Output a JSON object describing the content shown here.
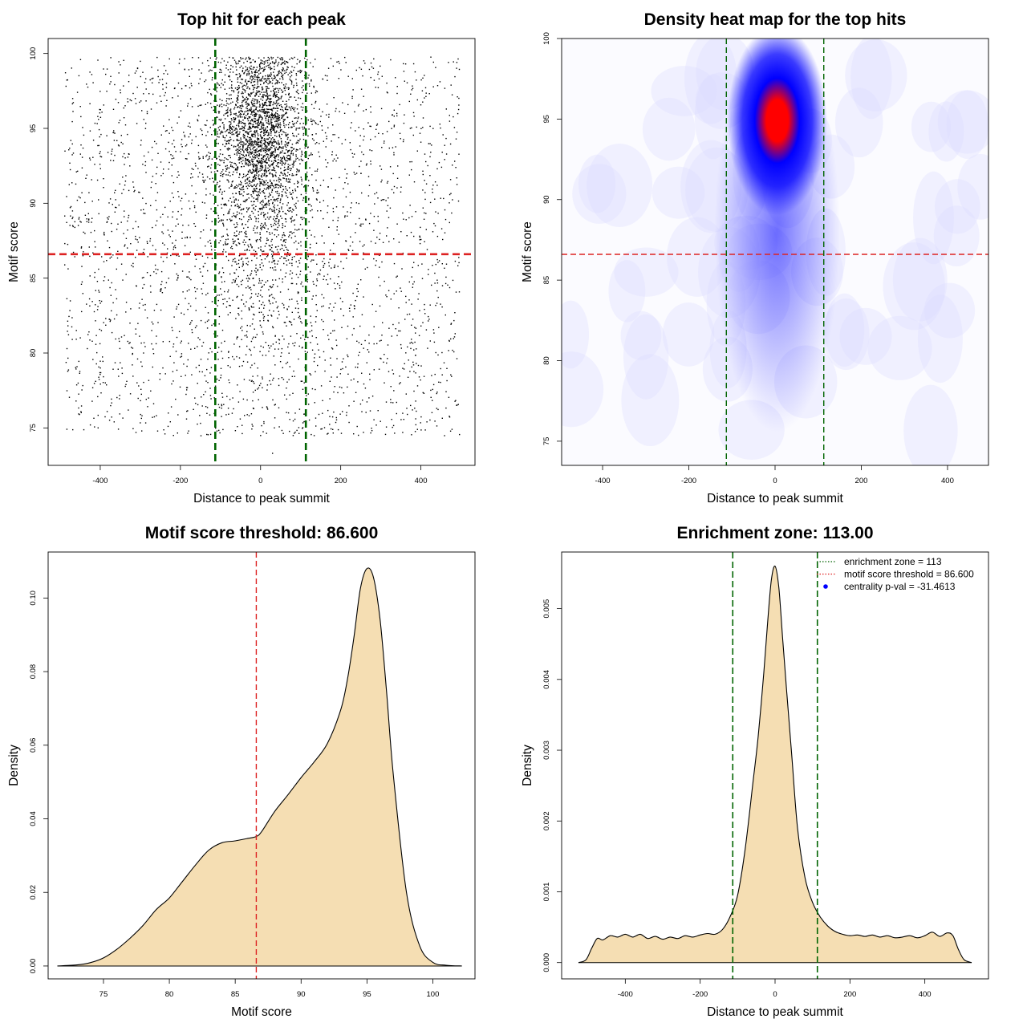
{
  "chart_data": [
    {
      "id": "p1",
      "type": "scatter",
      "title": "Top hit for each peak",
      "xlabel": "Distance to peak summit",
      "ylabel": "Motif score",
      "xlim": [
        -530,
        535
      ],
      "ylim": [
        72.5,
        101
      ],
      "xticks": [
        -400,
        -200,
        0,
        200,
        400
      ],
      "yticks": [
        75,
        80,
        85,
        90,
        95,
        100
      ],
      "vlines": [
        -113,
        113
      ],
      "hline": 86.6,
      "vline_color": "#006400",
      "hline_color": "#dd2222",
      "point_color": "#000000",
      "point_groups": [
        {
          "name": "background",
          "count": 2500,
          "x_range": [
            -490,
            495
          ],
          "y_range": [
            74.5,
            99.8
          ],
          "distribution": "uniform"
        },
        {
          "name": "central cluster",
          "count": 2200,
          "x_center": 0,
          "x_sd": 55,
          "y_center": 94.5,
          "y_sd": 3.2
        },
        {
          "name": "central spread",
          "count": 700,
          "x_center": 0,
          "x_sd": 80,
          "y_center": 88,
          "y_sd": 5
        }
      ]
    },
    {
      "id": "p2",
      "type": "heatmap",
      "title": "Density heat map for the top hits",
      "xlabel": "Distance to peak summit",
      "ylabel": "Motif score",
      "xlim": [
        -495,
        495
      ],
      "ylim": [
        73.5,
        100
      ],
      "xticks": [
        -400,
        -200,
        0,
        200,
        400
      ],
      "yticks": [
        75,
        80,
        85,
        90,
        95,
        100
      ],
      "vlines": [
        -113,
        113
      ],
      "hline": 86.6,
      "peak": {
        "x": 5,
        "y": 95.3
      },
      "color_scale": [
        "#ffffff",
        "#0000ff",
        "#ff0000"
      ]
    },
    {
      "id": "p3",
      "type": "area",
      "title": "Motif score threshold: 86.600",
      "xlabel": "Motif score",
      "ylabel": "Density",
      "xlim": [
        70.8,
        103.2
      ],
      "ylim": [
        -0.0035,
        0.1125
      ],
      "xticks": [
        75,
        80,
        85,
        90,
        95,
        100
      ],
      "yticks": [
        0.0,
        0.02,
        0.04,
        0.06,
        0.08,
        0.1
      ],
      "ytick_labels": [
        "0.00",
        "0.02",
        "0.04",
        "0.06",
        "0.08",
        "0.10"
      ],
      "vline": 86.6,
      "fill": "#f5deb3",
      "x": [
        71.5,
        73,
        74,
        75,
        76,
        77,
        78,
        79,
        80,
        81,
        82,
        83,
        84,
        85,
        86,
        86.6,
        87,
        88,
        89,
        90,
        91,
        92,
        93,
        93.5,
        94,
        94.5,
        95,
        95.5,
        96,
        96.5,
        97,
        98,
        99,
        100,
        101,
        102.2
      ],
      "y": [
        0.0,
        0.0003,
        0.0009,
        0.0022,
        0.0045,
        0.0075,
        0.011,
        0.0153,
        0.0185,
        0.023,
        0.0275,
        0.0315,
        0.0335,
        0.034,
        0.0347,
        0.0352,
        0.0365,
        0.042,
        0.0465,
        0.0512,
        0.0555,
        0.0605,
        0.0695,
        0.0775,
        0.089,
        0.1025,
        0.108,
        0.1055,
        0.094,
        0.074,
        0.052,
        0.02,
        0.0055,
        0.001,
        0.0002,
        0.0
      ]
    },
    {
      "id": "p4",
      "type": "area",
      "title": "Enrichment zone: 113.00",
      "xlabel": "Distance to peak summit",
      "ylabel": "Density",
      "xlim": [
        -570,
        570
      ],
      "ylim": [
        -0.00023,
        0.0058
      ],
      "xticks": [
        -400,
        -200,
        0,
        200,
        400
      ],
      "yticks": [
        0.0,
        0.001,
        0.002,
        0.003,
        0.004,
        0.005
      ],
      "ytick_labels": [
        "0.000",
        "0.001",
        "0.002",
        "0.003",
        "0.004",
        "0.005"
      ],
      "vlines": [
        -113,
        113
      ],
      "fill": "#f5deb3",
      "x": [
        -525,
        -505,
        -490,
        -475,
        -460,
        -440,
        -420,
        -400,
        -380,
        -360,
        -340,
        -320,
        -300,
        -280,
        -260,
        -240,
        -220,
        -200,
        -180,
        -160,
        -140,
        -120,
        -100,
        -80,
        -60,
        -45,
        -30,
        -20,
        -10,
        0,
        10,
        20,
        30,
        45,
        60,
        80,
        100,
        120,
        140,
        160,
        180,
        200,
        220,
        240,
        260,
        280,
        300,
        320,
        340,
        360,
        380,
        400,
        420,
        440,
        460,
        475,
        490,
        505,
        525
      ],
      "y": [
        0.0,
        4e-05,
        0.0002,
        0.00034,
        0.00032,
        0.00038,
        0.00036,
        0.0004,
        0.00036,
        0.0004,
        0.00034,
        0.00037,
        0.00033,
        0.00036,
        0.00034,
        0.00038,
        0.00036,
        0.00039,
        0.00041,
        0.0004,
        0.00047,
        0.00065,
        0.00095,
        0.0016,
        0.0025,
        0.0032,
        0.0041,
        0.0048,
        0.0054,
        0.0056,
        0.0053,
        0.0046,
        0.0039,
        0.0029,
        0.0019,
        0.0012,
        0.00085,
        0.00065,
        0.00052,
        0.00044,
        0.0004,
        0.00038,
        0.00039,
        0.00037,
        0.00039,
        0.00036,
        0.00038,
        0.00035,
        0.00036,
        0.00038,
        0.00035,
        0.00038,
        0.00043,
        0.00037,
        0.00042,
        0.00038,
        0.00018,
        4e-05,
        0.0
      ],
      "legend": {
        "position": "top-right",
        "entries": [
          {
            "label": "enrichment zone = 113",
            "color": "#006400",
            "style": "dotted-line"
          },
          {
            "label": "motif score threshold = 86.600",
            "color": "#dd2222",
            "style": "dotted-line"
          },
          {
            "label": "centrality p-val = -31.4613",
            "color": "#0000ff",
            "style": "point"
          }
        ]
      }
    }
  ]
}
